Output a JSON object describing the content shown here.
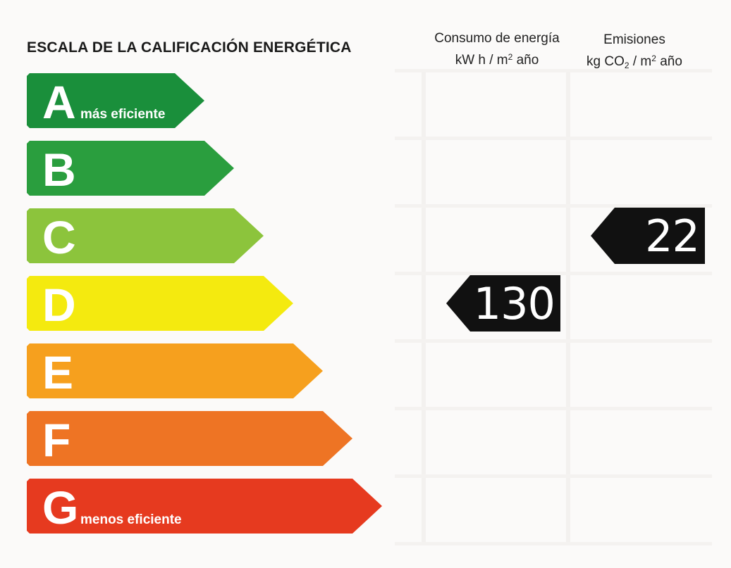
{
  "title": "ESCALA DE LA CALIFICACIÓN ENERGÉTICA",
  "columns": {
    "consumo": {
      "line1": "Consumo de energía",
      "line2_prefix": "kW h  / m",
      "line2_sup": "2",
      "line2_suffix": " año"
    },
    "emisiones": {
      "line1": "Emisiones",
      "line2_prefix": "kg CO",
      "line2_sub": "2",
      "line2_mid": "  / m",
      "line2_sup": "2",
      "line2_suffix": " año"
    }
  },
  "classes": [
    {
      "letter": "A",
      "label": "más eficiente",
      "color": "#1a8f3b"
    },
    {
      "letter": "B",
      "label": "",
      "color": "#2a9e3e"
    },
    {
      "letter": "C",
      "label": "",
      "color": "#8cc43c"
    },
    {
      "letter": "D",
      "label": "",
      "color": "#f4ea0f"
    },
    {
      "letter": "E",
      "label": "",
      "color": "#f6a01e"
    },
    {
      "letter": "F",
      "label": "",
      "color": "#ee7424"
    },
    {
      "letter": "G",
      "label": "menos eficiente",
      "color": "#e63a1f"
    }
  ],
  "ratings": {
    "consumo": {
      "value": "130",
      "class": "D",
      "color": "#111111"
    },
    "emisiones": {
      "value": "22",
      "class": "C",
      "color": "#111111"
    }
  }
}
